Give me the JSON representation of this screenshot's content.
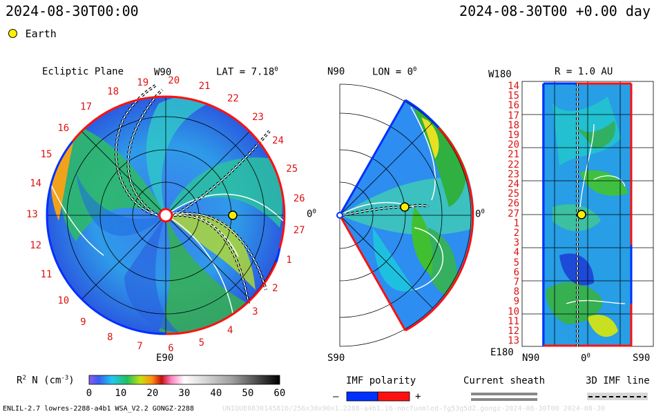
{
  "header": {
    "date_left": "2024-08-30T00:00",
    "date_right": "2024-08-30T00 +0.00 day",
    "legend_earth": "Earth"
  },
  "ecliptic_panel": {
    "title": "Ecliptic Plane",
    "lat_label": "LAT = 7.18",
    "lat_sup": "0",
    "top_label": "W90",
    "bottom_label": "E90",
    "right_label": "0",
    "right_sup": "0",
    "carrington_labels": [
      "19",
      "20",
      "21",
      "22",
      "23",
      "24",
      "25",
      "26",
      "27",
      "1",
      "2",
      "3",
      "4",
      "5",
      "6",
      "7",
      "8",
      "9",
      "10",
      "11",
      "12",
      "13",
      "14",
      "15",
      "16",
      "17",
      "18"
    ]
  },
  "meridional_panel": {
    "top_left": "N90",
    "title": "LON = 0",
    "title_sup": "0",
    "bottom_left": "S90",
    "right_label": "0",
    "right_sup": "0"
  },
  "radial_panel": {
    "top_left": "W180",
    "title": "R = 1.0 AU",
    "bottom_left": "E180",
    "bottom_mid": "0",
    "bottom_mid_sup": "0",
    "bottom_right": "S90",
    "bottom_n": "N90",
    "row_labels": [
      "14",
      "15",
      "16",
      "17",
      "18",
      "19",
      "20",
      "21",
      "22",
      "23",
      "24",
      "25",
      "26",
      "27",
      "1",
      "2",
      "3",
      "4",
      "5",
      "6",
      "7",
      "8",
      "9",
      "10",
      "11",
      "12",
      "13"
    ]
  },
  "colorbar": {
    "label": "R",
    "label_sup": "2",
    "label_rest": " N (cm",
    "label_exp": "-3",
    "label_end": ")",
    "ticks": [
      "0",
      "10",
      "20",
      "30",
      "40",
      "50",
      "60"
    ]
  },
  "legends": {
    "imf_title": "IMF polarity",
    "imf_minus": "–",
    "imf_plus": "+",
    "sheath_title": "Current sheath",
    "imf_line_title": "3D IMF line"
  },
  "footer": {
    "model": "ENLIL-2.7 lowres-2288-a4b1 WSA_V2.2 GONGZ-2288",
    "watermark": "UNIQUE0830145816/256x30x90x1.2288-a4b1.16-nocfunmled-fg53q5d2.gongz-2024-08-30T00  2024-08-30"
  }
}
